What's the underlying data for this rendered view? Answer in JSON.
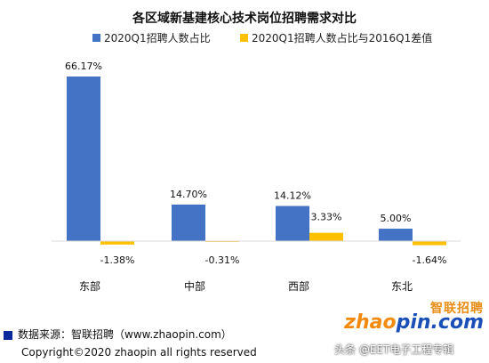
{
  "chart_data": {
    "type": "bar",
    "title": "各区域新基建核心技术岗位招聘需求对比",
    "categories": [
      "东部",
      "中部",
      "西部",
      "东北"
    ],
    "series": [
      {
        "name": "2020Q1招聘人数占比",
        "values": [
          66.17,
          14.7,
          14.12,
          5.0
        ],
        "color": "#4472c4"
      },
      {
        "name": "2020Q1招聘人数占比与2016Q1差值",
        "values": [
          -1.38,
          -0.31,
          3.33,
          -1.64
        ],
        "color": "#ffc000"
      }
    ],
    "unit": "%",
    "ylim": [
      -1.64,
      66.17
    ],
    "grid": false,
    "legend_position": "top"
  },
  "footer": {
    "source": "数据来源：智联招聘（www.zhaopin.com）",
    "copyright": "Copyright©2020 zhaopin all rights reserved"
  },
  "logo": {
    "cn": "智联招聘",
    "en_left": "zhao",
    "en_right": "pin.com"
  },
  "watermark": "头条 @EET电子工程专辑"
}
